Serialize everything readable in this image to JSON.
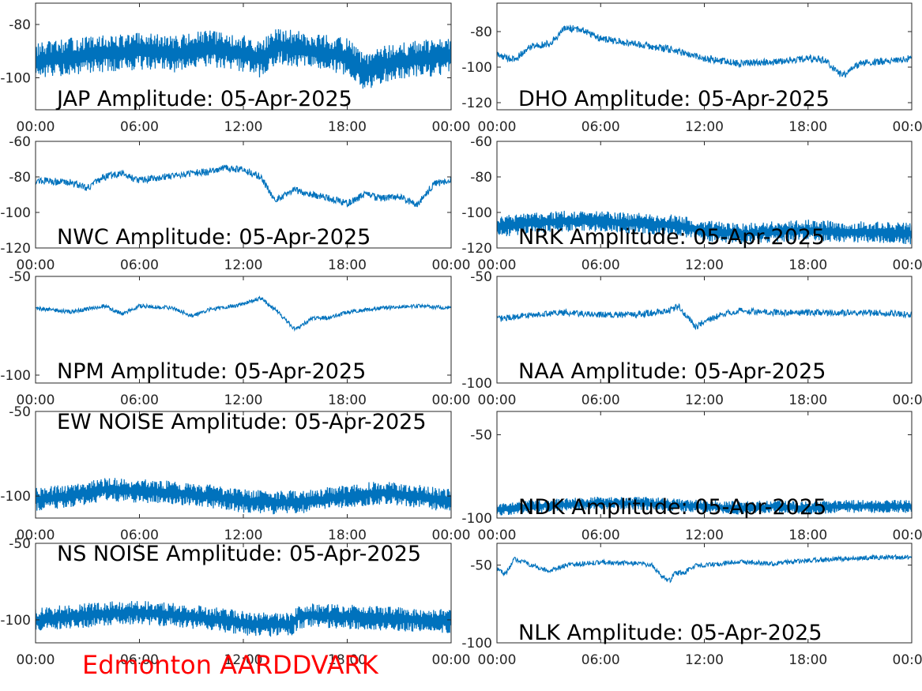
{
  "footer_label": "Edmonton AARDDVARK",
  "footer_color": "#ff0000",
  "series_color": "#0072bd",
  "chart_data": [
    {
      "type": "line",
      "title": "JAP Amplitude: 05-Apr-2025",
      "x_ticks": [
        "00:00",
        "06:00",
        "12:00",
        "18:00",
        "00:00"
      ],
      "y_ticks": [
        "-80",
        "-100"
      ],
      "ylim": [
        -112,
        -72
      ],
      "grid": false,
      "x": [
        0,
        2,
        4,
        6,
        8,
        10,
        12,
        13,
        14,
        16,
        18,
        19,
        20,
        22,
        24
      ],
      "series": [
        {
          "values": [
            -94,
            -92,
            -91,
            -90,
            -91,
            -89,
            -91,
            -93,
            -88,
            -90,
            -92,
            -98,
            -95,
            -93,
            -92
          ],
          "noise": 7
        }
      ]
    },
    {
      "type": "line",
      "title": "DHO Amplitude: 05-Apr-2025",
      "x_ticks": [
        "00:00",
        "06:00",
        "12:00",
        "18:00",
        "00:00"
      ],
      "y_ticks": [
        "-80",
        "-100",
        "-120"
      ],
      "ylim": [
        -124,
        -64
      ],
      "grid": false,
      "x": [
        0,
        1,
        2,
        3,
        4,
        5,
        6,
        8,
        10,
        12,
        14,
        16,
        18,
        19,
        20,
        21,
        22,
        24
      ],
      "series": [
        {
          "values": [
            -93,
            -96,
            -88,
            -87,
            -78,
            -79,
            -84,
            -87,
            -90,
            -95,
            -98,
            -97,
            -95,
            -96,
            -105,
            -98,
            -97,
            -95
          ],
          "noise": 2
        }
      ]
    },
    {
      "type": "line",
      "title": "NWC Amplitude: 05-Apr-2025",
      "x_ticks": [
        "00:00",
        "06:00",
        "12:00",
        "18:00",
        "00:00"
      ],
      "y_ticks": [
        "-60",
        "-80",
        "-100",
        "-120"
      ],
      "ylim": [
        -120,
        -60
      ],
      "grid": false,
      "x": [
        0,
        2,
        3,
        4,
        5,
        6,
        8,
        10,
        11,
        12,
        13,
        13.8,
        15,
        16,
        17,
        18,
        19,
        20,
        21,
        22,
        23,
        24
      ],
      "series": [
        {
          "values": [
            -82,
            -83,
            -86,
            -80,
            -78,
            -82,
            -79,
            -77,
            -75,
            -76,
            -80,
            -93,
            -87,
            -90,
            -92,
            -95,
            -90,
            -92,
            -91,
            -96,
            -84,
            -82
          ],
          "noise": 2
        }
      ]
    },
    {
      "type": "line",
      "title": "NRK Amplitude: 05-Apr-2025",
      "x_ticks": [
        "00:00",
        "06:00",
        "12:00",
        "18:00",
        "00:00"
      ],
      "y_ticks": [
        "-60",
        "-80",
        "-100",
        "-120"
      ],
      "ylim": [
        -120,
        -60
      ],
      "grid": false,
      "x": [
        0,
        2,
        4,
        6,
        8,
        10,
        12,
        14,
        16,
        18,
        20,
        22,
        24
      ],
      "series": [
        {
          "values": [
            -108,
            -106,
            -105,
            -105,
            -106,
            -107,
            -110,
            -112,
            -111,
            -110,
            -111,
            -111,
            -112
          ],
          "noise": 6
        }
      ]
    },
    {
      "type": "line",
      "title": "NPM Amplitude: 05-Apr-2025",
      "x_ticks": [
        "00:00",
        "06:00",
        "12:00",
        "18:00",
        "00:00"
      ],
      "y_ticks": [
        "-50",
        "-100"
      ],
      "ylim": [
        -104,
        -50
      ],
      "grid": false,
      "x": [
        0,
        2,
        4,
        5,
        6,
        8,
        9,
        10,
        12,
        13,
        14,
        15,
        16,
        17,
        18,
        20,
        22,
        24
      ],
      "series": [
        {
          "values": [
            -66,
            -68,
            -65,
            -69,
            -65,
            -66,
            -70,
            -67,
            -64,
            -61,
            -68,
            -77,
            -71,
            -71,
            -68,
            -66,
            -65,
            -66
          ],
          "noise": 1
        }
      ]
    },
    {
      "type": "line",
      "title": "NAA Amplitude: 05-Apr-2025",
      "x_ticks": [
        "00:00",
        "06:00",
        "12:00",
        "18:00",
        "00:00"
      ],
      "y_ticks": [
        "-50",
        "-100"
      ],
      "ylim": [
        -100,
        -50
      ],
      "grid": false,
      "x": [
        0,
        2,
        4,
        6,
        8,
        10,
        10.5,
        11,
        11.5,
        12,
        13,
        14,
        16,
        18,
        20,
        22,
        24
      ],
      "series": [
        {
          "values": [
            -70,
            -68,
            -67,
            -68,
            -68,
            -66,
            -64,
            -69,
            -74,
            -71,
            -68,
            -66,
            -67,
            -67,
            -67,
            -67,
            -68
          ],
          "noise": 1.5
        }
      ]
    },
    {
      "type": "line",
      "title": "EW NOISE Amplitude: 05-Apr-2025",
      "x_ticks": [
        "00:00",
        "06:00",
        "12:00",
        "18:00",
        "00:00"
      ],
      "y_ticks": [
        "-50",
        "-100"
      ],
      "ylim": [
        -113,
        -50
      ],
      "grid": false,
      "x": [
        0,
        2,
        4,
        6,
        8,
        10,
        12,
        14,
        16,
        18,
        20,
        22,
        24
      ],
      "series": [
        {
          "values": [
            -102,
            -100,
            -96,
            -97,
            -98,
            -100,
            -103,
            -104,
            -103,
            -100,
            -98,
            -100,
            -103
          ],
          "noise": 7
        }
      ]
    },
    {
      "type": "line",
      "title": "NDK Amplitude: 05-Apr-2025",
      "x_ticks": [
        "00:00",
        "06:00",
        "12:00",
        "18:00",
        "00:00"
      ],
      "y_ticks": [
        "-50",
        "-100"
      ],
      "ylim": [
        -100,
        -36
      ],
      "grid": false,
      "x": [
        0,
        2,
        4,
        6,
        8,
        10,
        12,
        14,
        16,
        18,
        20,
        22,
        24
      ],
      "series": [
        {
          "values": [
            -95,
            -93,
            -92,
            -91,
            -91,
            -92,
            -93,
            -94,
            -93,
            -94,
            -93,
            -93,
            -93
          ],
          "noise": 4
        }
      ]
    },
    {
      "type": "line",
      "title": "NS NOISE Amplitude: 05-Apr-2025",
      "x_ticks": [
        "00:00",
        "06:00",
        "12:00",
        "18:00",
        "00:00"
      ],
      "y_ticks": [
        "-50",
        "-100"
      ],
      "ylim": [
        -115,
        -50
      ],
      "grid": false,
      "x": [
        0,
        2,
        4,
        6,
        8,
        10,
        12,
        13,
        14,
        14.8,
        15.2,
        16,
        18,
        20,
        22,
        24
      ],
      "series": [
        {
          "values": [
            -100,
            -98,
            -96,
            -95,
            -97,
            -99,
            -102,
            -103,
            -103,
            -103,
            -98,
            -97,
            -98,
            -99,
            -100,
            -101
          ],
          "noise": 8
        }
      ]
    },
    {
      "type": "line",
      "title": "NLK Amplitude: 05-Apr-2025",
      "x_ticks": [
        "00:00",
        "06:00",
        "12:00",
        "18:00",
        "00:00"
      ],
      "y_ticks": [
        "-50",
        "-100"
      ],
      "ylim": [
        -100,
        -36
      ],
      "grid": false,
      "x": [
        0,
        0.5,
        1,
        2,
        3,
        4,
        6,
        8,
        9,
        9.5,
        10,
        10.3,
        10.8,
        11.5,
        12,
        14,
        16,
        18,
        20,
        22,
        24
      ],
      "series": [
        {
          "values": [
            -52,
            -56,
            -46,
            -50,
            -54,
            -50,
            -48,
            -49,
            -50,
            -57,
            -60,
            -55,
            -55,
            -50,
            -50,
            -48,
            -49,
            -47,
            -46,
            -45,
            -45
          ],
          "noise": 1.5
        }
      ]
    }
  ]
}
